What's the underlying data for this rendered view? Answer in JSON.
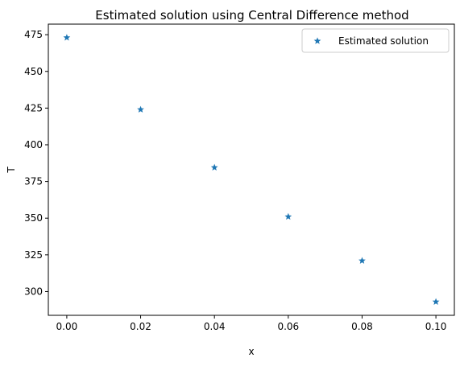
{
  "chart_data": {
    "type": "scatter",
    "title": "Estimated solution using Central Difference method",
    "xlabel": "x",
    "ylabel": "T",
    "xlim": [
      -0.005,
      0.105
    ],
    "ylim": [
      283.8,
      482.2
    ],
    "xticks": [
      0.0,
      0.02,
      0.04,
      0.06,
      0.08,
      0.1
    ],
    "xtick_labels": [
      "0.00",
      "0.02",
      "0.04",
      "0.06",
      "0.08",
      "0.10"
    ],
    "yticks": [
      300,
      325,
      350,
      375,
      400,
      425,
      450,
      475
    ],
    "ytick_labels": [
      "300",
      "325",
      "350",
      "375",
      "400",
      "425",
      "450",
      "475"
    ],
    "grid": false,
    "legend": "top-right",
    "series": [
      {
        "name": "Estimated solution",
        "marker": "star",
        "color": "#1f77b4",
        "x": [
          0.0,
          0.02,
          0.04,
          0.06,
          0.08,
          0.1
        ],
        "y": [
          473,
          424,
          384.5,
          351,
          321,
          293
        ]
      }
    ]
  }
}
